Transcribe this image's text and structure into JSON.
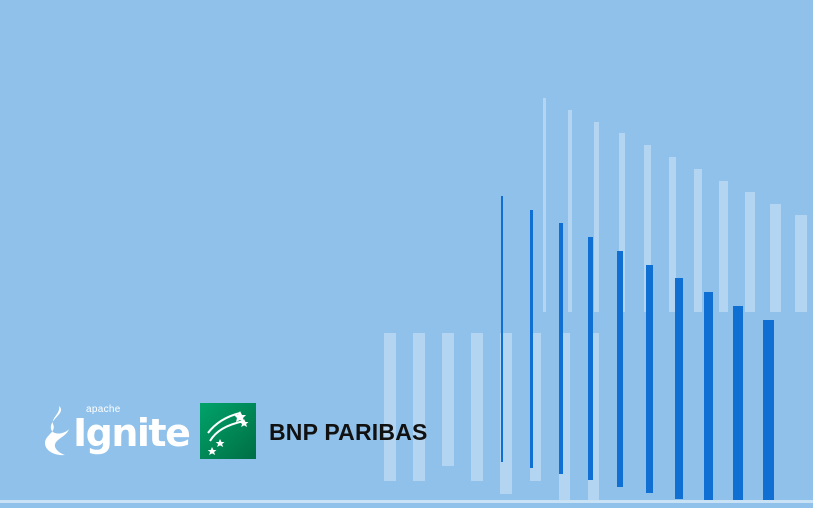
{
  "colors": {
    "background": "#8fc1ea",
    "bar_dark": "#0f6fd2",
    "bar_light": "#b3d5f2",
    "bnp_green": "#00965e",
    "bnp_text": "#111111",
    "ignite_white": "#ffffff"
  },
  "logos": {
    "ignite": {
      "icon": "flame-icon",
      "small_text": "apache",
      "word": "Ignite"
    },
    "bnp": {
      "icon": "stars-icon",
      "name": "BNP PARIBAS"
    }
  }
}
